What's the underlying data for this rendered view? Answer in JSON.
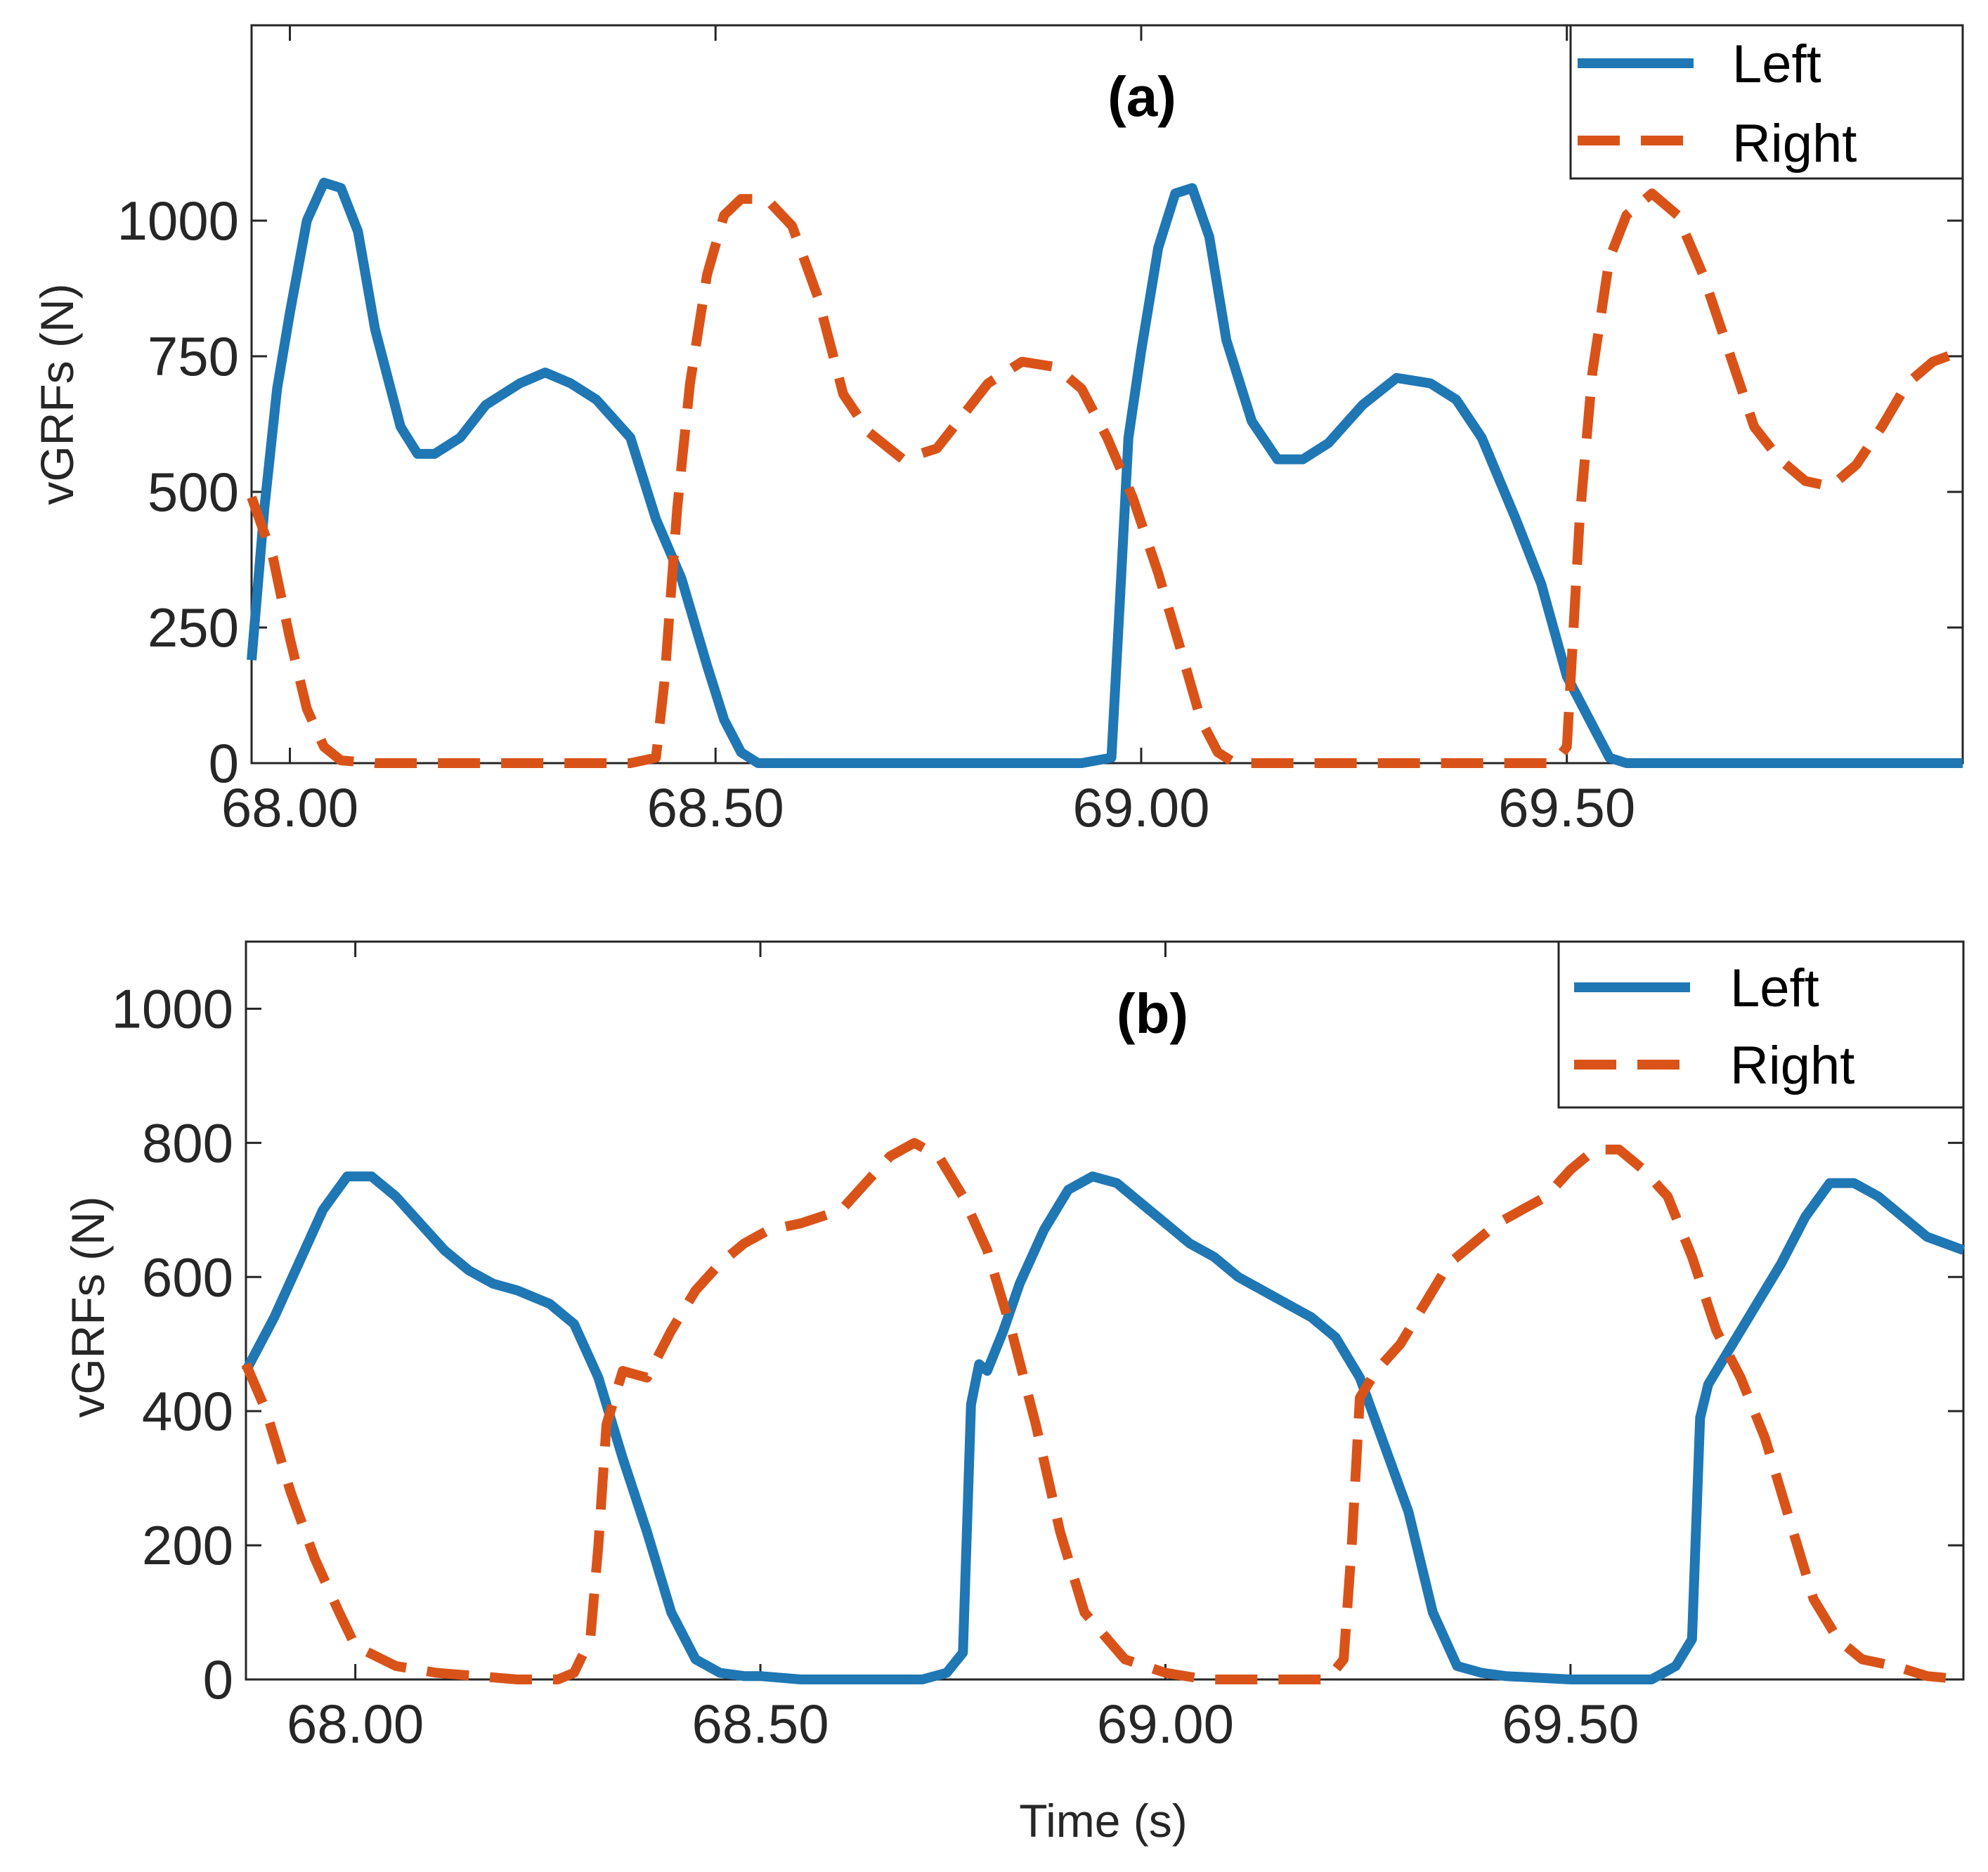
{
  "colors": {
    "left": "#1f77b4",
    "right": "#d95319"
  },
  "chart_data": [
    {
      "type": "line",
      "title": "(a)",
      "xlabel": "",
      "ylabel": "vGRFs (N)",
      "xlim": [
        67.955,
        69.965
      ],
      "ylim": [
        0,
        1360
      ],
      "xticks": [
        68.0,
        68.5,
        69.0,
        69.5
      ],
      "xtick_labels": [
        "68.00",
        "68.50",
        "69.00",
        "69.50"
      ],
      "yticks": [
        0,
        250,
        500,
        750,
        1000
      ],
      "ytick_labels": [
        "0",
        "250",
        "500",
        "750",
        "1000"
      ],
      "legend": {
        "position": "top-right",
        "entries": [
          "Left",
          "Right"
        ]
      },
      "series": [
        {
          "name": "Left",
          "style": "solid",
          "x": [
            67.955,
            67.97,
            67.985,
            68.0,
            68.02,
            68.04,
            68.06,
            68.08,
            68.1,
            68.13,
            68.15,
            68.17,
            68.2,
            68.23,
            68.27,
            68.3,
            68.33,
            68.36,
            68.4,
            68.43,
            68.46,
            68.49,
            68.51,
            68.53,
            68.55,
            68.56,
            68.58,
            68.65,
            68.75,
            68.85,
            68.93,
            68.965,
            68.975,
            68.985,
            69.0,
            69.02,
            69.04,
            69.06,
            69.08,
            69.1,
            69.13,
            69.16,
            69.19,
            69.22,
            69.26,
            69.3,
            69.34,
            69.37,
            69.4,
            69.44,
            69.47,
            69.5,
            69.53,
            69.55,
            69.57,
            69.59,
            69.6,
            69.62,
            69.7,
            69.8,
            69.9,
            69.965
          ],
          "y": [
            190,
            470,
            690,
            830,
            1000,
            1070,
            1060,
            980,
            800,
            620,
            570,
            570,
            600,
            660,
            700,
            720,
            700,
            670,
            600,
            450,
            340,
            180,
            80,
            20,
            0,
            0,
            0,
            0,
            0,
            0,
            0,
            10,
            300,
            600,
            760,
            950,
            1050,
            1060,
            970,
            780,
            630,
            560,
            560,
            590,
            660,
            710,
            700,
            670,
            600,
            450,
            330,
            160,
            70,
            10,
            0,
            0,
            0,
            0,
            0,
            0,
            0,
            0
          ]
        },
        {
          "name": "Right",
          "style": "dashed",
          "x": [
            67.955,
            67.98,
            68.0,
            68.02,
            68.04,
            68.06,
            68.1,
            68.2,
            68.3,
            68.4,
            68.43,
            68.44,
            68.455,
            68.47,
            68.49,
            68.51,
            68.53,
            68.56,
            68.59,
            68.62,
            68.65,
            68.68,
            68.72,
            68.76,
            68.79,
            68.82,
            68.86,
            68.9,
            68.93,
            68.96,
            68.99,
            69.02,
            69.05,
            69.07,
            69.09,
            69.11,
            69.2,
            69.3,
            69.4,
            69.45,
            69.485,
            69.5,
            69.515,
            69.53,
            69.55,
            69.57,
            69.6,
            69.63,
            69.66,
            69.69,
            69.72,
            69.75,
            69.78,
            69.81,
            69.84,
            69.87,
            69.9,
            69.93,
            69.965
          ],
          "y": [
            490,
            380,
            230,
            100,
            30,
            5,
            0,
            0,
            0,
            0,
            10,
            150,
            470,
            700,
            900,
            1010,
            1040,
            1040,
            990,
            860,
            680,
            610,
            560,
            580,
            640,
            700,
            740,
            730,
            690,
            600,
            490,
            350,
            190,
            80,
            20,
            0,
            0,
            0,
            0,
            0,
            0,
            30,
            450,
            720,
            930,
            1010,
            1050,
            1010,
            900,
            760,
            620,
            560,
            520,
            510,
            550,
            620,
            700,
            740,
            760
          ]
        }
      ]
    },
    {
      "type": "line",
      "title": "(b)",
      "xlabel": "Time (s)",
      "ylabel": "vGRFs (N)",
      "xlim": [
        67.865,
        69.985
      ],
      "ylim": [
        0,
        1100
      ],
      "xticks": [
        68.0,
        68.5,
        69.0,
        69.5
      ],
      "xtick_labels": [
        "68.00",
        "68.50",
        "69.00",
        "69.50"
      ],
      "yticks": [
        0,
        200,
        400,
        600,
        800,
        1000
      ],
      "ytick_labels": [
        "0",
        "200",
        "400",
        "600",
        "800",
        "1000"
      ],
      "legend": {
        "position": "top-right",
        "entries": [
          "Left",
          "Right"
        ]
      },
      "series": [
        {
          "name": "Left",
          "style": "solid",
          "x": [
            67.865,
            67.9,
            67.93,
            67.96,
            67.99,
            68.02,
            68.05,
            68.08,
            68.11,
            68.14,
            68.17,
            68.2,
            68.24,
            68.27,
            68.3,
            68.33,
            68.36,
            68.39,
            68.42,
            68.45,
            68.48,
            68.5,
            68.55,
            68.6,
            68.65,
            68.7,
            68.73,
            68.75,
            68.76,
            68.77,
            68.78,
            68.8,
            68.82,
            68.85,
            68.88,
            68.91,
            68.94,
            68.97,
            69.0,
            69.03,
            69.06,
            69.09,
            69.12,
            69.15,
            69.18,
            69.21,
            69.24,
            69.27,
            69.3,
            69.33,
            69.36,
            69.39,
            69.42,
            69.5,
            69.55,
            69.6,
            69.63,
            69.65,
            69.66,
            69.67,
            69.69,
            69.71,
            69.73,
            69.76,
            69.79,
            69.82,
            69.85,
            69.88,
            69.91,
            69.94,
            69.985
          ],
          "y": [
            460,
            540,
            620,
            700,
            750,
            750,
            720,
            680,
            640,
            610,
            590,
            580,
            560,
            530,
            450,
            330,
            220,
            100,
            30,
            10,
            5,
            5,
            0,
            0,
            0,
            0,
            10,
            40,
            410,
            470,
            460,
            520,
            590,
            670,
            730,
            750,
            740,
            710,
            680,
            650,
            630,
            600,
            580,
            560,
            540,
            510,
            450,
            350,
            250,
            100,
            20,
            10,
            5,
            0,
            0,
            0,
            20,
            60,
            390,
            440,
            480,
            520,
            560,
            620,
            690,
            740,
            740,
            720,
            690,
            660,
            640
          ]
        },
        {
          "name": "Right",
          "style": "dashed",
          "x": [
            67.865,
            67.89,
            67.92,
            67.95,
            67.98,
            68.0,
            68.05,
            68.1,
            68.15,
            68.2,
            68.25,
            68.27,
            68.29,
            68.3,
            68.31,
            68.33,
            68.36,
            68.39,
            68.42,
            68.45,
            68.48,
            68.51,
            68.55,
            68.6,
            68.63,
            68.66,
            68.69,
            68.72,
            68.75,
            68.78,
            68.81,
            68.84,
            68.87,
            68.9,
            68.95,
            69.0,
            69.05,
            69.1,
            69.15,
            69.2,
            69.22,
            69.23,
            69.24,
            69.26,
            69.29,
            69.32,
            69.35,
            69.38,
            69.41,
            69.44,
            69.47,
            69.5,
            69.53,
            69.56,
            69.59,
            69.62,
            69.65,
            69.68,
            69.71,
            69.74,
            69.77,
            69.8,
            69.83,
            69.86,
            69.9,
            69.94,
            69.985
          ],
          "y": [
            470,
            400,
            280,
            180,
            100,
            50,
            20,
            10,
            5,
            0,
            0,
            10,
            60,
            200,
            380,
            460,
            450,
            520,
            580,
            620,
            650,
            670,
            680,
            700,
            740,
            780,
            800,
            780,
            720,
            640,
            520,
            380,
            220,
            100,
            30,
            10,
            0,
            0,
            0,
            0,
            30,
            200,
            420,
            460,
            500,
            560,
            620,
            650,
            680,
            700,
            720,
            760,
            790,
            790,
            760,
            720,
            630,
            520,
            450,
            360,
            240,
            120,
            60,
            30,
            20,
            5,
            0
          ]
        }
      ]
    }
  ]
}
